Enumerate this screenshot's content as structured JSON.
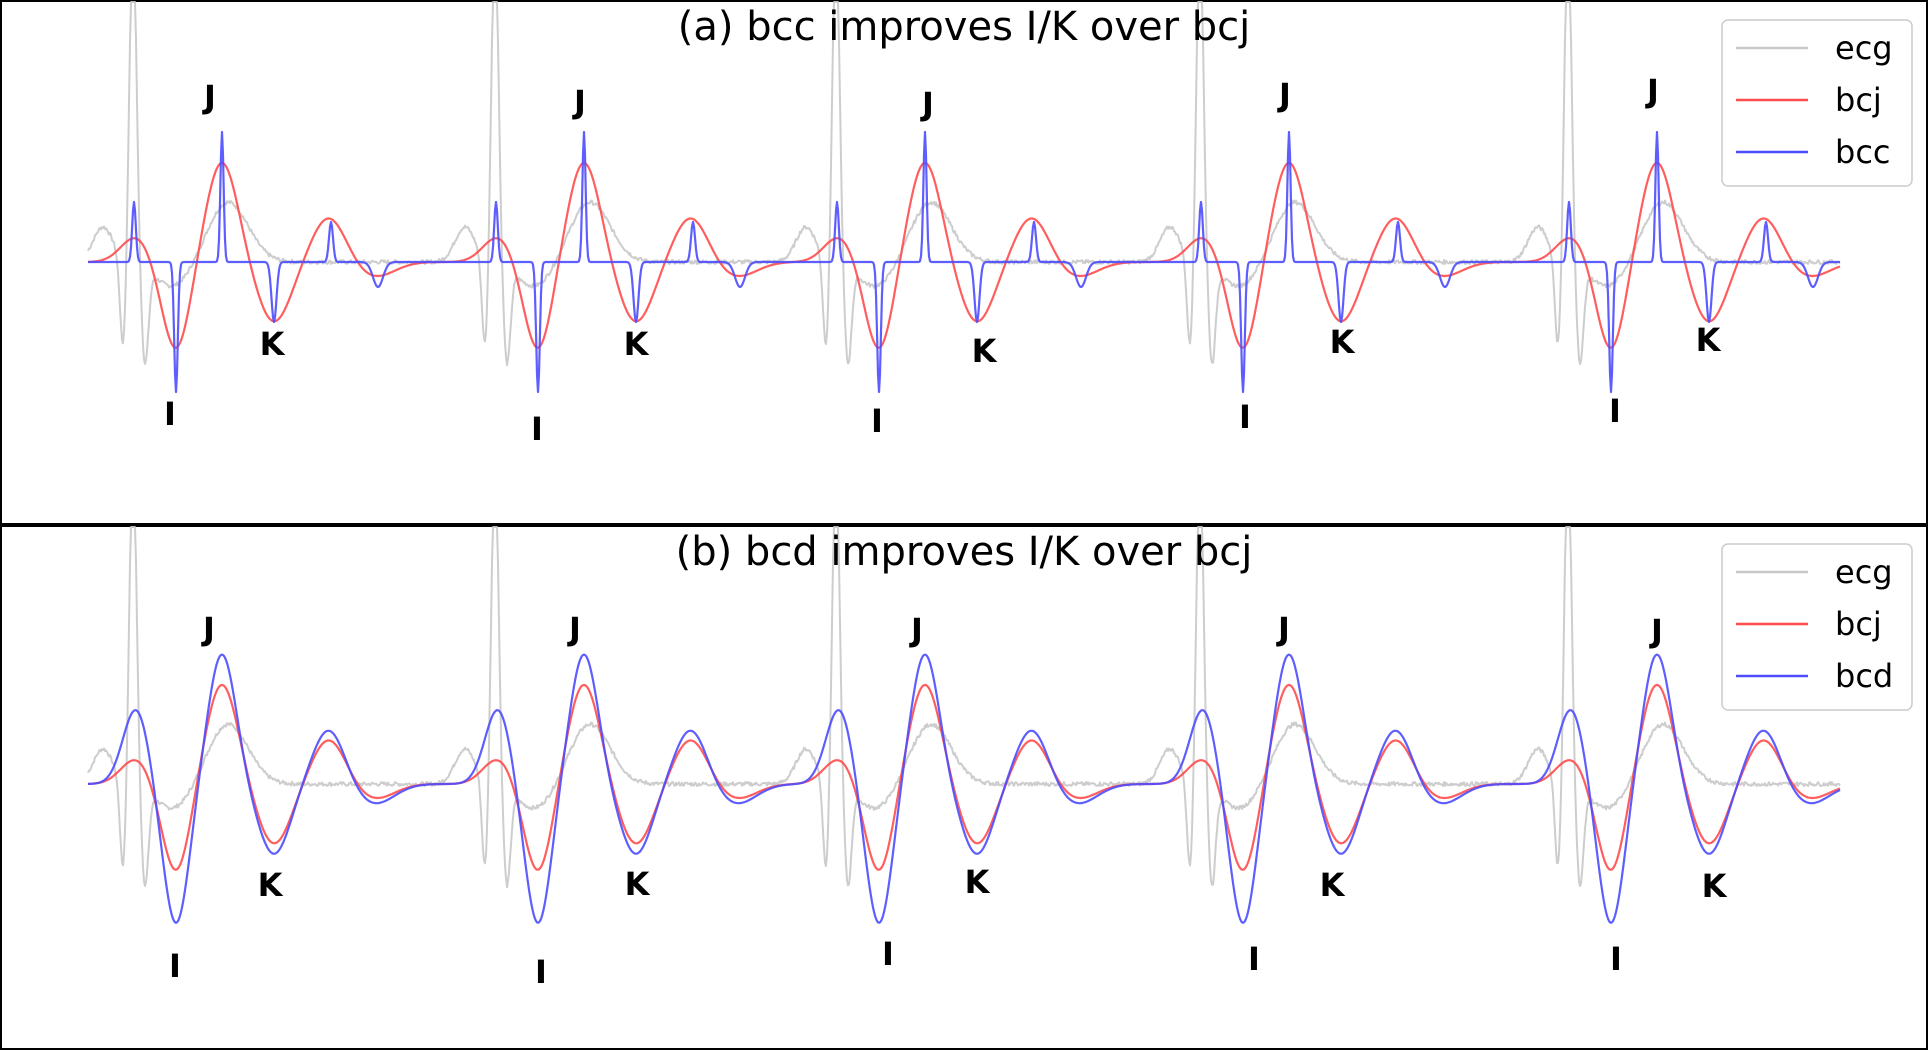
{
  "chart_data": [
    {
      "type": "line",
      "title": "(a) bcc improves I/K over bcj",
      "legend_position": "top-right",
      "grid": false,
      "axes_visible": false,
      "series": [
        {
          "name": "ecg",
          "color": "#c8c8c8"
        },
        {
          "name": "bcj",
          "color": "#ff4d4d"
        },
        {
          "name": "bcc",
          "color": "#4d4dff"
        }
      ],
      "annotations": [
        "J",
        "I",
        "K",
        "J",
        "I",
        "K",
        "J",
        "I",
        "K",
        "J",
        "I",
        "K",
        "J",
        "I",
        "K"
      ]
    },
    {
      "type": "line",
      "title": "(b) bcd improves I/K over bcj",
      "legend_position": "top-right",
      "grid": false,
      "axes_visible": false,
      "series": [
        {
          "name": "ecg",
          "color": "#c8c8c8"
        },
        {
          "name": "bcj",
          "color": "#ff4d4d"
        },
        {
          "name": "bcd",
          "color": "#4d4dff"
        }
      ],
      "annotations": [
        "J",
        "I",
        "K",
        "J",
        "I",
        "K",
        "J",
        "I",
        "K",
        "J",
        "I",
        "K",
        "J",
        "I",
        "K"
      ]
    }
  ]
}
